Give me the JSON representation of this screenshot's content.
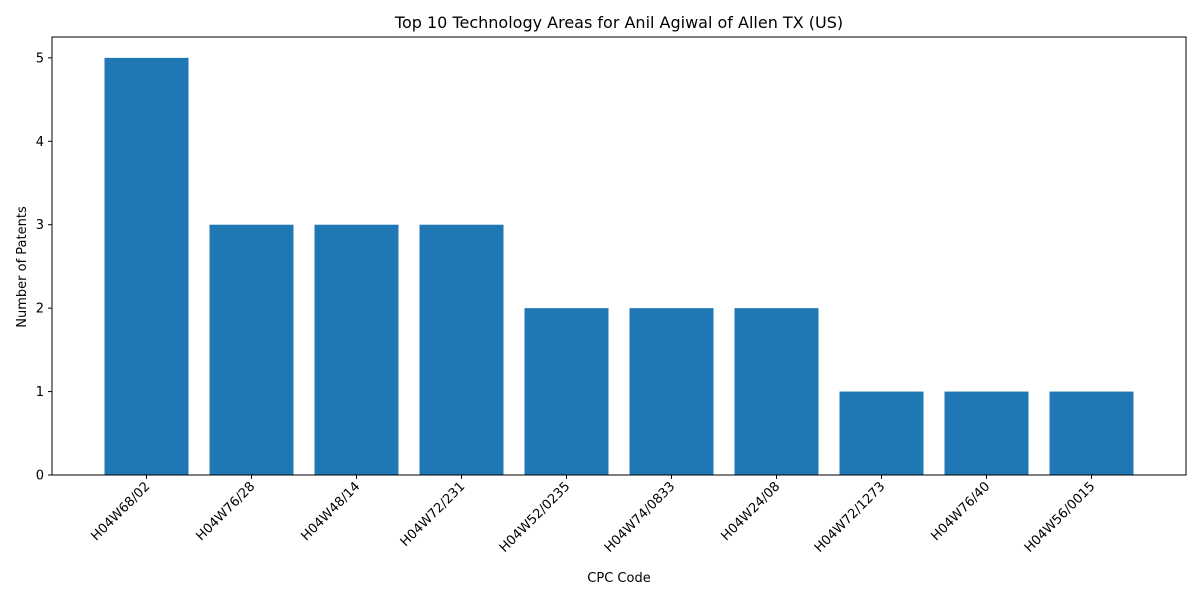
{
  "chart_data": {
    "type": "bar",
    "title": "Top 10 Technology Areas for Anil Agiwal of Allen TX (US)",
    "xlabel": "CPC Code",
    "ylabel": "Number of Patents",
    "categories": [
      "H04W68/02",
      "H04W76/28",
      "H04W48/14",
      "H04W72/231",
      "H04W52/0235",
      "H04W74/0833",
      "H04W24/08",
      "H04W72/1273",
      "H04W76/40",
      "H04W56/0015"
    ],
    "values": [
      5,
      3,
      3,
      3,
      2,
      2,
      2,
      1,
      1,
      1
    ],
    "ylim": [
      0,
      5.25
    ],
    "yticks": [
      0,
      1,
      2,
      3,
      4,
      5
    ],
    "grid": false,
    "bar_color": "#1f77b4"
  }
}
